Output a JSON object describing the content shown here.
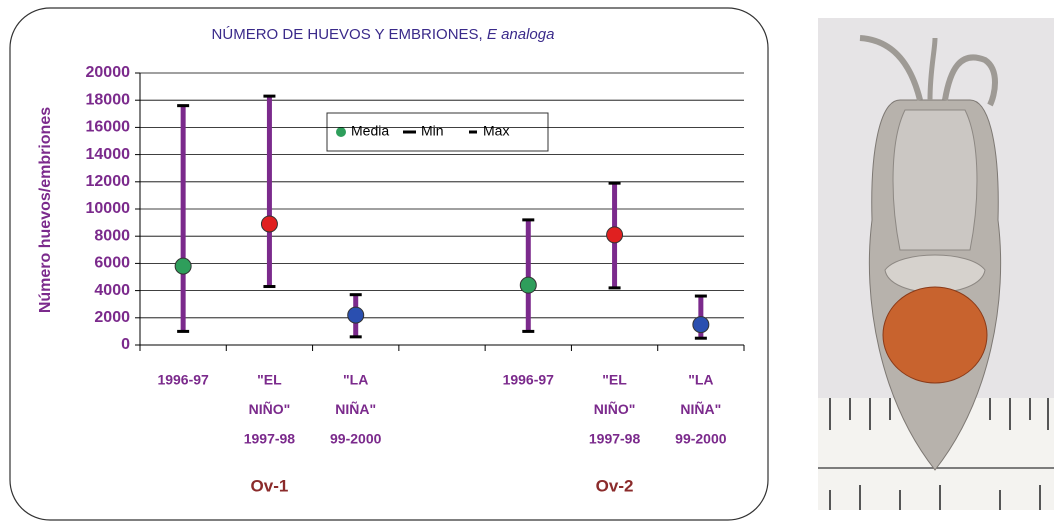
{
  "chart_data": {
    "type": "range",
    "title": "NÚMERO DE HUEVOS Y EMBRIONES,",
    "title_italic": "E analoga",
    "y_label": "Número huevos/embriones",
    "categories": [
      [
        "1996-97"
      ],
      [
        "\"EL",
        "NIÑO\"",
        "1997-98"
      ],
      [
        "\"LA",
        "NIÑA\"",
        "99-2000"
      ],
      null,
      [
        "1996-97"
      ],
      [
        "\"EL",
        "NIÑO\"",
        "1997-98"
      ],
      [
        "\"LA",
        "NIÑA\"",
        "99-2000"
      ]
    ],
    "groups": [
      {
        "label": "Ov-1",
        "from": 0,
        "to": 2
      },
      {
        "label": "Ov-2",
        "from": 4,
        "to": 6
      }
    ],
    "range_color": "#7b2a8c",
    "series": [
      {
        "name": "Media",
        "color": "#2e9e5b",
        "point_colors": [
          "#2e9e5b",
          "#e02020",
          "#2a4fb0",
          null,
          "#2e9e5b",
          "#e02020",
          "#2a4fb0"
        ],
        "values": [
          5800,
          8900,
          2200,
          null,
          4400,
          8100,
          1500
        ]
      },
      {
        "name": "Min",
        "color": "#000000",
        "values": [
          1000,
          4300,
          600,
          null,
          1000,
          4200,
          500
        ]
      },
      {
        "name": "Max",
        "color": "#000000",
        "values": [
          17600,
          18300,
          3700,
          null,
          9200,
          11900,
          3600
        ]
      }
    ],
    "ylim": [
      0,
      20000
    ],
    "yticks": [
      0,
      2000,
      4000,
      6000,
      8000,
      10000,
      12000,
      14000,
      16000,
      18000,
      20000
    ],
    "grid": true,
    "legend": "top"
  }
}
